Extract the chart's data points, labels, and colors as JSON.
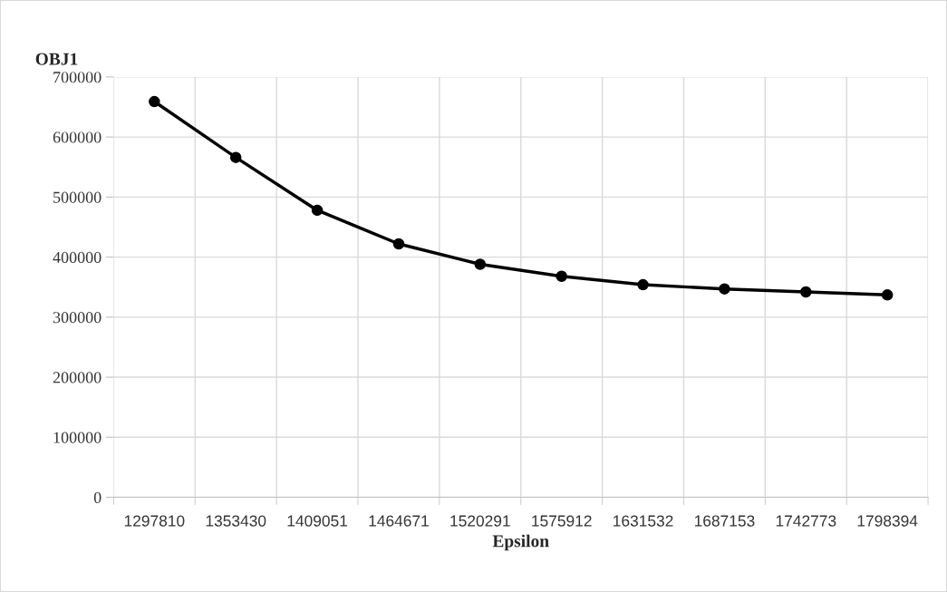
{
  "chart_data": {
    "type": "line",
    "ylabel": "OBJ1",
    "xlabel": "Epsilon",
    "categories": [
      "1297810",
      "1353430",
      "1409051",
      "1464671",
      "1520291",
      "1575912",
      "1631532",
      "1687153",
      "1742773",
      "1798394"
    ],
    "series": [
      {
        "color": "#000000",
        "values": [
          659000,
          566000,
          478000,
          422000,
          388000,
          368000,
          354000,
          347000,
          342000,
          337000
        ]
      }
    ],
    "ylim": [
      0,
      700000
    ],
    "yticks": [
      0,
      100000,
      200000,
      300000,
      400000,
      500000,
      600000,
      700000
    ],
    "grid": true,
    "marker": "circle",
    "line_style": "solid"
  }
}
